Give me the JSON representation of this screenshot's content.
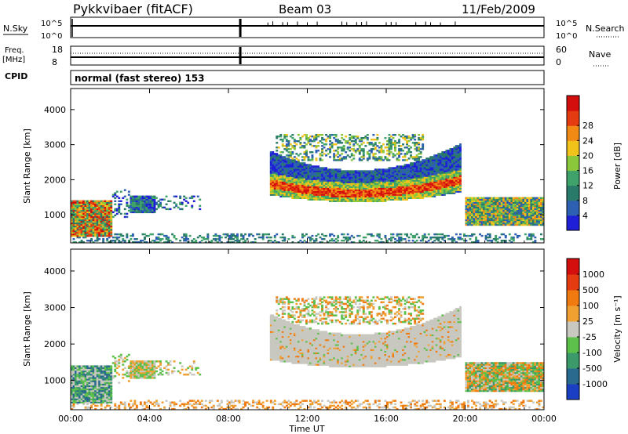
{
  "header": {
    "station": "Pykkvibaer (fitACF)",
    "beam": "Beam 03",
    "date": "11/Feb/2009"
  },
  "top_panels": {
    "nsky_label": "N.Sky",
    "nsearch_label": "N.Search",
    "nsky_ticks": [
      "10^5",
      "10^0"
    ],
    "nsearch_ticks": [
      "10^5",
      "10^0"
    ],
    "freq_label": "Freq.",
    "freq_unit": "[MHz]",
    "freq_ticks": [
      "18",
      "8"
    ],
    "nave_label": "Nave",
    "nave_ticks": [
      "60",
      "0"
    ],
    "cpid_label": "CPID",
    "cpid_text": "normal (fast stereo) 153"
  },
  "chart_data": [
    {
      "type": "heatmap",
      "name": "power",
      "ylabel": "Slant Range [km]",
      "xlabel": "",
      "yticks": [
        "1000",
        "2000",
        "3000",
        "4000"
      ],
      "ylim": [
        200,
        4600
      ],
      "colorbar_label": "Power [dB]",
      "colorbar_ticks": [
        "4",
        "8",
        "12",
        "16",
        "20",
        "24",
        "28"
      ],
      "colors": [
        "#1f1fd8",
        "#2d5fb3",
        "#2a7a6a",
        "#3ea26a",
        "#8ac73a",
        "#f0c21a",
        "#f08a15",
        "#e43b10",
        "#d40d0d"
      ]
    },
    {
      "type": "heatmap",
      "name": "velocity",
      "ylabel": "Slant Range [km]",
      "xlabel": "Time UT",
      "yticks": [
        "1000",
        "2000",
        "3000",
        "4000"
      ],
      "ylim": [
        200,
        4600
      ],
      "xticks": [
        "00:00",
        "04:00",
        "08:00",
        "12:00",
        "16:00",
        "20:00",
        "00:00"
      ],
      "xlim": [
        0,
        24
      ],
      "colorbar_label": "Velocity [m s⁻¹]",
      "colorbar_ticks": [
        "1000",
        "500",
        "100",
        "25",
        "-25",
        "-100",
        "-500",
        "-1000"
      ],
      "colors": [
        "#1a3fc2",
        "#2a6a8e",
        "#3c9a6a",
        "#5cc04a",
        "#c8c8c0",
        "#f0a030",
        "#f07a10",
        "#e53b10",
        "#d40d0d"
      ]
    }
  ]
}
